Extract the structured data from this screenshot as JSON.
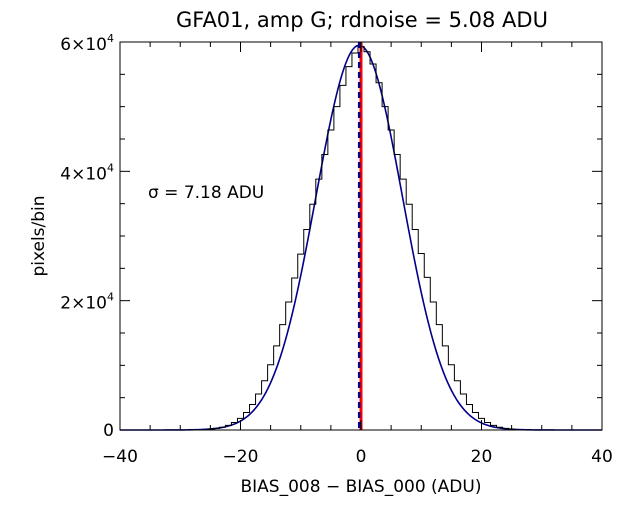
{
  "chart_data": {
    "type": "histogram",
    "title": "GFA01, amp G; rdnoise = 5.08 ADU",
    "xlabel": "BIAS_008 − BIAS_000 (ADU)",
    "ylabel": "pixels/bin",
    "annotation": "σ = 7.18 ADU",
    "sigma": 7.18,
    "xlim": [
      -40,
      40
    ],
    "ylim": [
      0,
      60000
    ],
    "x_ticks": [
      {
        "value": -40,
        "label": "−40"
      },
      {
        "value": -20,
        "label": "−20"
      },
      {
        "value": 0,
        "label": "0"
      },
      {
        "value": 20,
        "label": "20"
      },
      {
        "value": 40,
        "label": "40"
      }
    ],
    "y_ticks": [
      {
        "value": 0,
        "label": "0",
        "mantissa": "",
        "exponent": ""
      },
      {
        "value": 20000,
        "label": "2×10⁴",
        "mantissa": "2×10",
        "exponent": "4"
      },
      {
        "value": 40000,
        "label": "4×10⁴",
        "mantissa": "4×10",
        "exponent": "4"
      },
      {
        "value": 60000,
        "label": "6×10⁴",
        "mantissa": "6×10",
        "exponent": "4"
      }
    ],
    "histogram": {
      "bin_width": 1,
      "bin_centers": [
        -25,
        -24,
        -23,
        -22,
        -21,
        -20,
        -19,
        -18,
        -17,
        -16,
        -15,
        -14,
        -13,
        -12,
        -11,
        -10,
        -9,
        -8,
        -7,
        -6,
        -5,
        -4,
        -3,
        -2,
        -1,
        0,
        1,
        2,
        3,
        4,
        5,
        6,
        7,
        8,
        9,
        10,
        11,
        12,
        13,
        14,
        15,
        16,
        17,
        18,
        19,
        20,
        21,
        22,
        23,
        24,
        25
      ],
      "counts": [
        140,
        250,
        430,
        720,
        1150,
        1790,
        2700,
        3940,
        5560,
        7610,
        10100,
        13000,
        16300,
        19800,
        23500,
        27200,
        31000,
        34900,
        38800,
        42600,
        46400,
        50000,
        53300,
        56200,
        58300,
        59300,
        58500,
        56600,
        53700,
        50000,
        46400,
        42600,
        38800,
        34900,
        31000,
        27300,
        23600,
        19800,
        16300,
        13000,
        10100,
        7610,
        5560,
        3940,
        2700,
        1790,
        1150,
        720,
        430,
        250,
        140
      ],
      "color": "#000000"
    },
    "gaussian_fit": {
      "mean": -0.3,
      "amplitude": 59500,
      "sigma": 7.18,
      "color": "#00008b"
    },
    "markers": [
      {
        "name": "zero",
        "x": 0,
        "color": "#ff0000",
        "style": "solid"
      },
      {
        "name": "median",
        "x": -0.3,
        "color": "#00008b",
        "style": "dashed"
      }
    ],
    "grid": false,
    "legend": "none"
  }
}
